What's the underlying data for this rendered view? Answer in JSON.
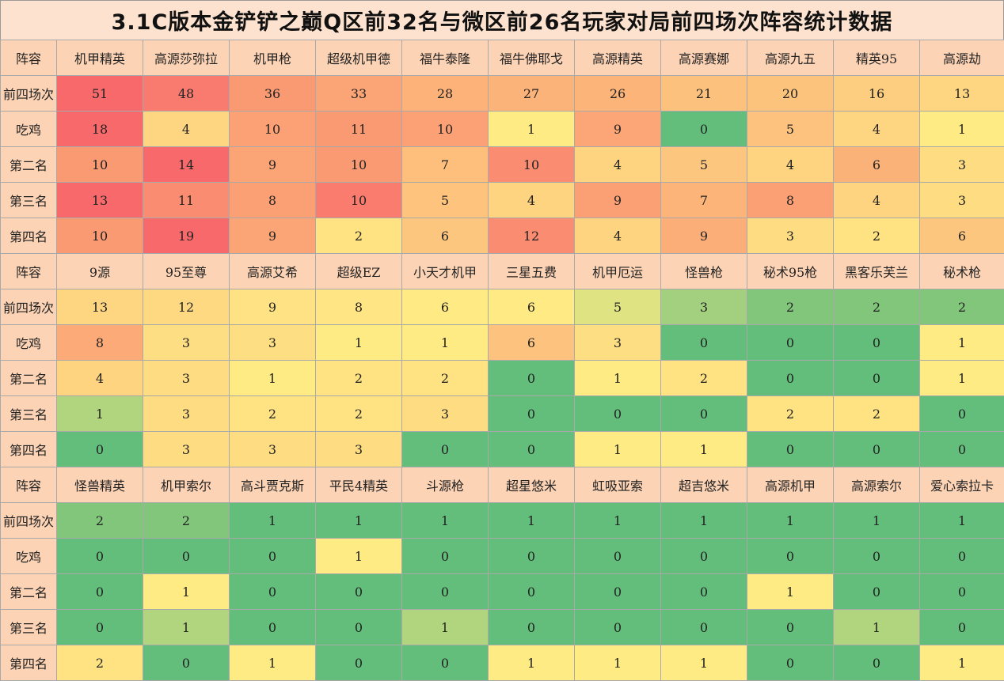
{
  "title": "3.1C版本金铲铲之巅Q区前32名与微区前26名玩家对局前四场次阵容统计数据",
  "row_labels": [
    "前四场次",
    "吃鸡",
    "第二名",
    "第三名",
    "第四名"
  ],
  "header_label": "阵容",
  "sections": [
    {
      "lineups": [
        "机甲精英",
        "高源莎弥拉",
        "机甲枪",
        "超级机甲德",
        "福牛泰隆",
        "福牛佛耶戈",
        "高源精英",
        "高源赛娜",
        "高源九五",
        "精英95",
        "高源劫"
      ],
      "values": [
        [
          "51",
          "48",
          "36",
          "33",
          "28",
          "27",
          "26",
          "21",
          "20",
          "16",
          "13"
        ],
        [
          "18",
          "4",
          "10",
          "11",
          "10",
          "1",
          "9",
          "0",
          "5",
          "4",
          "1"
        ],
        [
          "10",
          "14",
          "9",
          "10",
          "7",
          "10",
          "4",
          "5",
          "4",
          "6",
          "3"
        ],
        [
          "13",
          "11",
          "8",
          "10",
          "5",
          "4",
          "9",
          "7",
          "8",
          "4",
          "3"
        ],
        [
          "10",
          "19",
          "9",
          "2",
          "6",
          "12",
          "4",
          "9",
          "3",
          "2",
          "6"
        ]
      ],
      "colors": [
        [
          "#f8696b",
          "#f97a6e",
          "#fa9a73",
          "#fba576",
          "#fcb279",
          "#fcb379",
          "#fcb479",
          "#fcc17c",
          "#fcc37d",
          "#fdce80",
          "#fed581"
        ],
        [
          "#f8696b",
          "#fed682",
          "#fba175",
          "#fa9a73",
          "#fba175",
          "#ffeb84",
          "#fca677",
          "#63be7b",
          "#fdc27d",
          "#fed682",
          "#ffeb84"
        ],
        [
          "#fa9a73",
          "#f8696b",
          "#fba576",
          "#fa9a73",
          "#fdbf7b",
          "#fa8c71",
          "#fed480",
          "#fdc67e",
          "#fed480",
          "#fbb279",
          "#fedd82"
        ],
        [
          "#f8696b",
          "#fa8c71",
          "#fba074",
          "#fa7c6e",
          "#fec37d",
          "#fed480",
          "#fba074",
          "#fcb479",
          "#fba074",
          "#fed480",
          "#fedd82"
        ],
        [
          "#fa9a73",
          "#f8696b",
          "#fba576",
          "#ffe383",
          "#fdc67e",
          "#fa8c71",
          "#fed480",
          "#fcae78",
          "#fedd82",
          "#ffe383",
          "#fdc67e"
        ]
      ]
    },
    {
      "lineups": [
        "9源",
        "95至尊",
        "高源艾希",
        "超级EZ",
        "小天才机甲",
        "三星五费",
        "机甲厄运",
        "怪兽枪",
        "秘术95枪",
        "黑客乐芙兰",
        "秘术枪"
      ],
      "values": [
        [
          "13",
          "12",
          "9",
          "8",
          "6",
          "6",
          "5",
          "3",
          "2",
          "2",
          "2"
        ],
        [
          "8",
          "3",
          "3",
          "1",
          "1",
          "6",
          "3",
          "0",
          "0",
          "0",
          "1"
        ],
        [
          "4",
          "3",
          "1",
          "2",
          "2",
          "0",
          "1",
          "2",
          "0",
          "0",
          "1"
        ],
        [
          "1",
          "3",
          "2",
          "2",
          "3",
          "0",
          "0",
          "0",
          "2",
          "2",
          "0"
        ],
        [
          "0",
          "3",
          "3",
          "3",
          "0",
          "0",
          "1",
          "1",
          "0",
          "0",
          "0"
        ]
      ],
      "colors": [
        [
          "#fed581",
          "#fed981",
          "#ffe283",
          "#ffe583",
          "#ffea84",
          "#ffea84",
          "#dfe382",
          "#a2d07e",
          "#82c67c",
          "#82c67c",
          "#82c67c"
        ],
        [
          "#fcaa78",
          "#fede82",
          "#fede82",
          "#ffeb84",
          "#ffeb84",
          "#fdc27d",
          "#fede82",
          "#63be7b",
          "#63be7b",
          "#63be7b",
          "#ffeb84"
        ],
        [
          "#fed480",
          "#fedd82",
          "#ffeb84",
          "#ffe383",
          "#ffe383",
          "#63be7b",
          "#ffeb84",
          "#ffe383",
          "#63be7b",
          "#63be7b",
          "#ffeb84"
        ],
        [
          "#b1d47f",
          "#fedd82",
          "#ffe383",
          "#ffe383",
          "#fedd82",
          "#63be7b",
          "#63be7b",
          "#63be7b",
          "#ffe383",
          "#ffe383",
          "#63be7b"
        ],
        [
          "#63be7b",
          "#fedd82",
          "#fedd82",
          "#fedd82",
          "#63be7b",
          "#63be7b",
          "#ffeb84",
          "#ffeb84",
          "#63be7b",
          "#63be7b",
          "#63be7b"
        ]
      ]
    },
    {
      "lineups": [
        "怪兽精英",
        "机甲索尔",
        "高斗贾克斯",
        "平民4精英",
        "斗源枪",
        "超星悠米",
        "虹吸亚索",
        "超吉悠米",
        "高源机甲",
        "高源索尔",
        "爱心索拉卡"
      ],
      "values": [
        [
          "2",
          "2",
          "1",
          "1",
          "1",
          "1",
          "1",
          "1",
          "1",
          "1",
          "1"
        ],
        [
          "0",
          "0",
          "0",
          "1",
          "0",
          "0",
          "0",
          "0",
          "0",
          "0",
          "0"
        ],
        [
          "0",
          "1",
          "0",
          "0",
          "0",
          "0",
          "0",
          "0",
          "1",
          "0",
          "0"
        ],
        [
          "0",
          "1",
          "0",
          "0",
          "1",
          "0",
          "0",
          "0",
          "0",
          "1",
          "0"
        ],
        [
          "2",
          "0",
          "1",
          "0",
          "0",
          "1",
          "1",
          "1",
          "0",
          "0",
          "1"
        ]
      ],
      "colors": [
        [
          "#82c67c",
          "#82c67c",
          "#63be7b",
          "#63be7b",
          "#63be7b",
          "#63be7b",
          "#63be7b",
          "#63be7b",
          "#63be7b",
          "#63be7b",
          "#63be7b"
        ],
        [
          "#63be7b",
          "#63be7b",
          "#63be7b",
          "#ffeb84",
          "#63be7b",
          "#63be7b",
          "#63be7b",
          "#63be7b",
          "#63be7b",
          "#63be7b",
          "#63be7b"
        ],
        [
          "#63be7b",
          "#ffeb84",
          "#63be7b",
          "#63be7b",
          "#63be7b",
          "#63be7b",
          "#63be7b",
          "#63be7b",
          "#ffeb84",
          "#63be7b",
          "#63be7b"
        ],
        [
          "#63be7b",
          "#b1d47f",
          "#63be7b",
          "#63be7b",
          "#b1d47f",
          "#63be7b",
          "#63be7b",
          "#63be7b",
          "#63be7b",
          "#b1d47f",
          "#63be7b"
        ],
        [
          "#ffe383",
          "#63be7b",
          "#ffeb84",
          "#63be7b",
          "#63be7b",
          "#ffeb84",
          "#ffeb84",
          "#ffeb84",
          "#63be7b",
          "#63be7b",
          "#ffeb84"
        ]
      ]
    }
  ]
}
